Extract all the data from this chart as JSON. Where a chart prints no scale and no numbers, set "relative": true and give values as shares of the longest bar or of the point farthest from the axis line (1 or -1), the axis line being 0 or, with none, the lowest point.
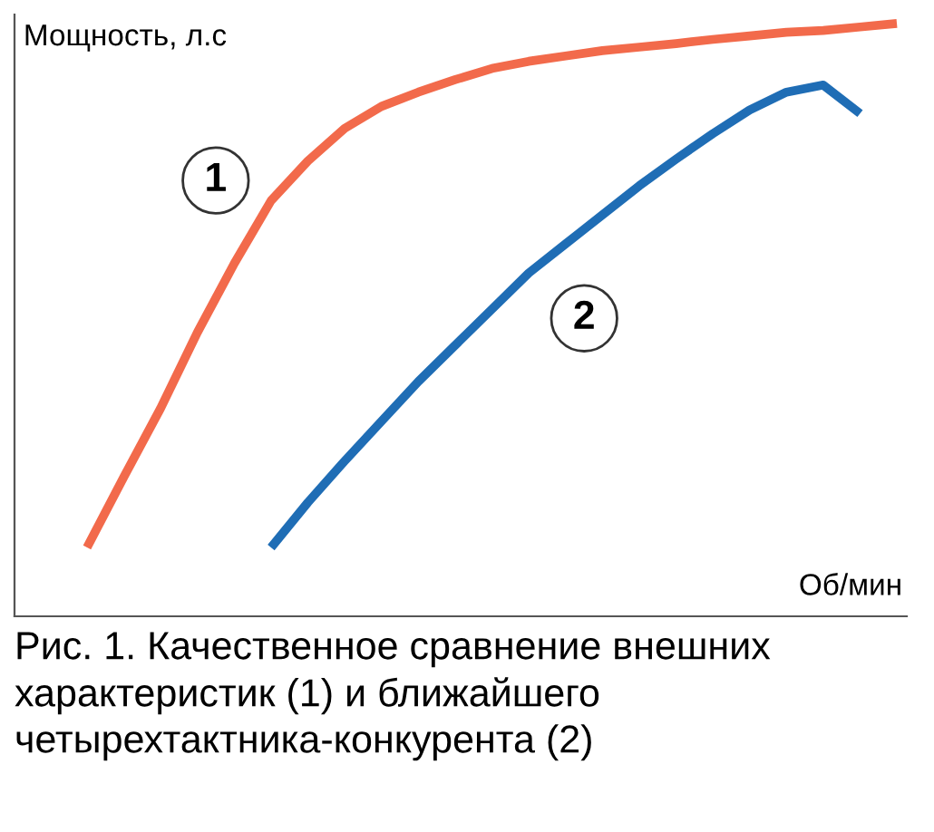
{
  "chart_data": {
    "type": "line",
    "relative": true,
    "tick_labels": false,
    "legend": false,
    "marker": "none",
    "line_style": "solid",
    "ylabel": "Мощность, л.с",
    "xlabel": "Об/мин",
    "annotations": [
      "Рис. 1. Качественное сравнение внешних характеристик (1) и ближайшего четырехтактника-конкурента (2)"
    ],
    "categories": [
      null,
      null,
      null,
      null,
      null,
      null,
      null,
      null,
      null,
      null,
      null,
      null,
      null,
      null,
      null,
      null,
      null,
      null,
      null,
      null,
      null,
      null,
      null
    ],
    "series": [
      {
        "name": "1",
        "color": "#f26a4b",
        "values": [
          0.116,
          0.235,
          0.351,
          0.479,
          0.595,
          0.701,
          0.768,
          0.823,
          0.86,
          0.884,
          0.905,
          0.924,
          0.936,
          0.945,
          0.954,
          0.96,
          0.966,
          0.973,
          0.979,
          0.985,
          0.988,
          0.994,
          1.0
        ]
      },
      {
        "name": "2",
        "color": "#1f6db5",
        "values": [
          null,
          null,
          null,
          null,
          null,
          0.116,
          0.192,
          0.262,
          0.329,
          0.396,
          0.457,
          0.518,
          0.579,
          0.628,
          0.677,
          0.726,
          0.771,
          0.814,
          0.854,
          0.884,
          0.896,
          0.848,
          null
        ]
      }
    ]
  }
}
